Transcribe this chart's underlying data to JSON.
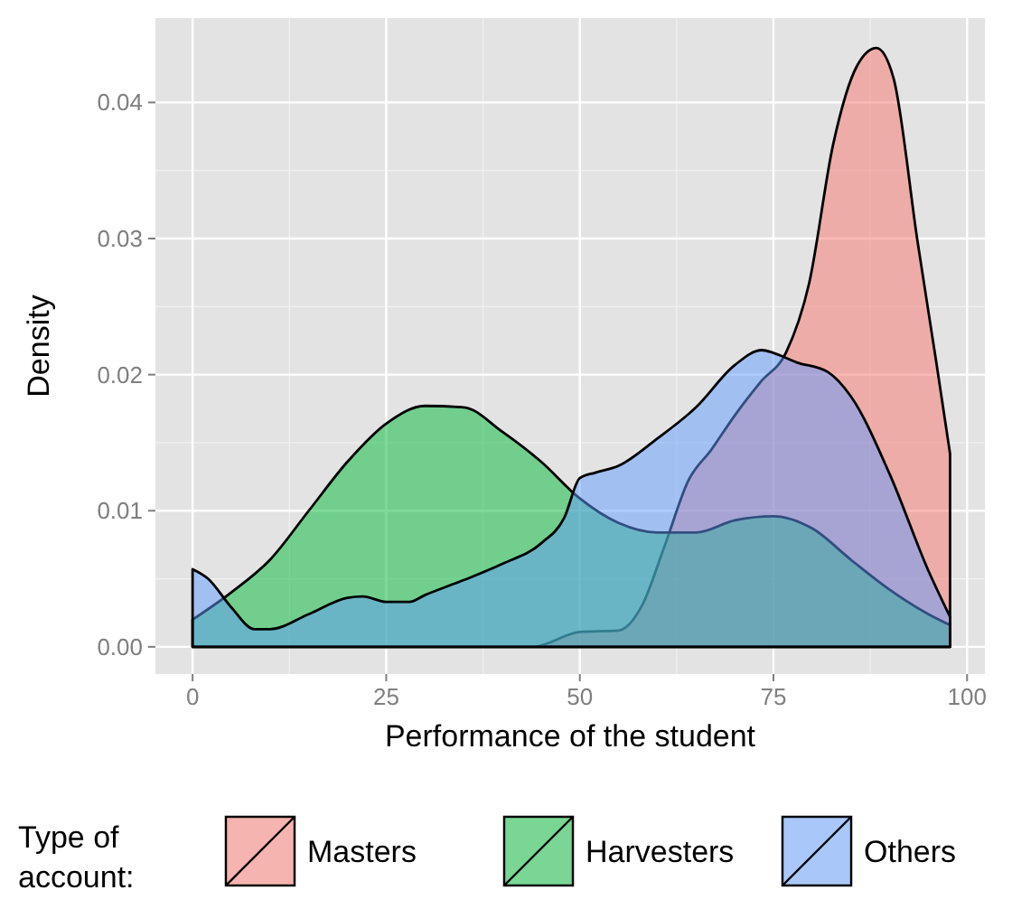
{
  "chart_data": {
    "type": "area",
    "xlabel": "Performance of the student",
    "ylabel": "Density",
    "legend_title": "Type of\naccount:",
    "xlim": [
      -4.8,
      102.3
    ],
    "ylim": [
      -0.002,
      0.0462
    ],
    "xticks": [
      0,
      25,
      50,
      75,
      100
    ],
    "yticks": [
      {
        "value": 0,
        "label": "0.00"
      },
      {
        "value": 0.01,
        "label": "0.01"
      },
      {
        "value": 0.02,
        "label": "0.02"
      },
      {
        "value": 0.03,
        "label": "0.03"
      },
      {
        "value": 0.04,
        "label": "0.04"
      }
    ],
    "grid": true,
    "legend": "bottom",
    "series": [
      {
        "name": "Masters",
        "color": "#f8766d",
        "x": [
          0,
          20,
          40,
          44,
          50,
          55,
          58,
          61,
          64,
          67,
          70,
          73.4,
          76.6,
          79.6,
          82.7,
          85.8,
          88.3,
          90.5,
          93.6,
          96,
          97.8
        ],
        "values": [
          0,
          0,
          0,
          0,
          0.0011,
          0.0012,
          0.003,
          0.0075,
          0.0122,
          0.0145,
          0.017,
          0.0195,
          0.0216,
          0.0267,
          0.0369,
          0.0427,
          0.044,
          0.0418,
          0.0298,
          0.021,
          0.0142
        ]
      },
      {
        "name": "Harvesters",
        "color": "#00ba38",
        "x": [
          0,
          5,
          10,
          15,
          20,
          25,
          30,
          35,
          40,
          45,
          50,
          55,
          60,
          65,
          70,
          75,
          80,
          85,
          90,
          95,
          97.8
        ],
        "values": [
          0.002,
          0.004,
          0.0064,
          0.01,
          0.0136,
          0.0164,
          0.0177,
          0.0176,
          0.0158,
          0.0136,
          0.0109,
          0.0091,
          0.0084,
          0.0084,
          0.0093,
          0.0096,
          0.0087,
          0.0064,
          0.0042,
          0.0024,
          0.0016
        ]
      },
      {
        "name": "Others",
        "color": "#619cff",
        "x": [
          0,
          2,
          5,
          8,
          10,
          15,
          20,
          22,
          25,
          28,
          30,
          35,
          40,
          45,
          48,
          50,
          52,
          55,
          60,
          65,
          70,
          73.5,
          75,
          78,
          82,
          85,
          90,
          95,
          97.8
        ],
        "values": [
          0.0057,
          0.005,
          0.0029,
          0.0013,
          0.0013,
          0.0024,
          0.0036,
          0.0037,
          0.0033,
          0.0033,
          0.0038,
          0.0049,
          0.0061,
          0.0076,
          0.0095,
          0.0124,
          0.0128,
          0.0133,
          0.0153,
          0.0176,
          0.0207,
          0.0218,
          0.0216,
          0.0209,
          0.0202,
          0.0184,
          0.0127,
          0.0056,
          0.0022
        ]
      }
    ]
  }
}
